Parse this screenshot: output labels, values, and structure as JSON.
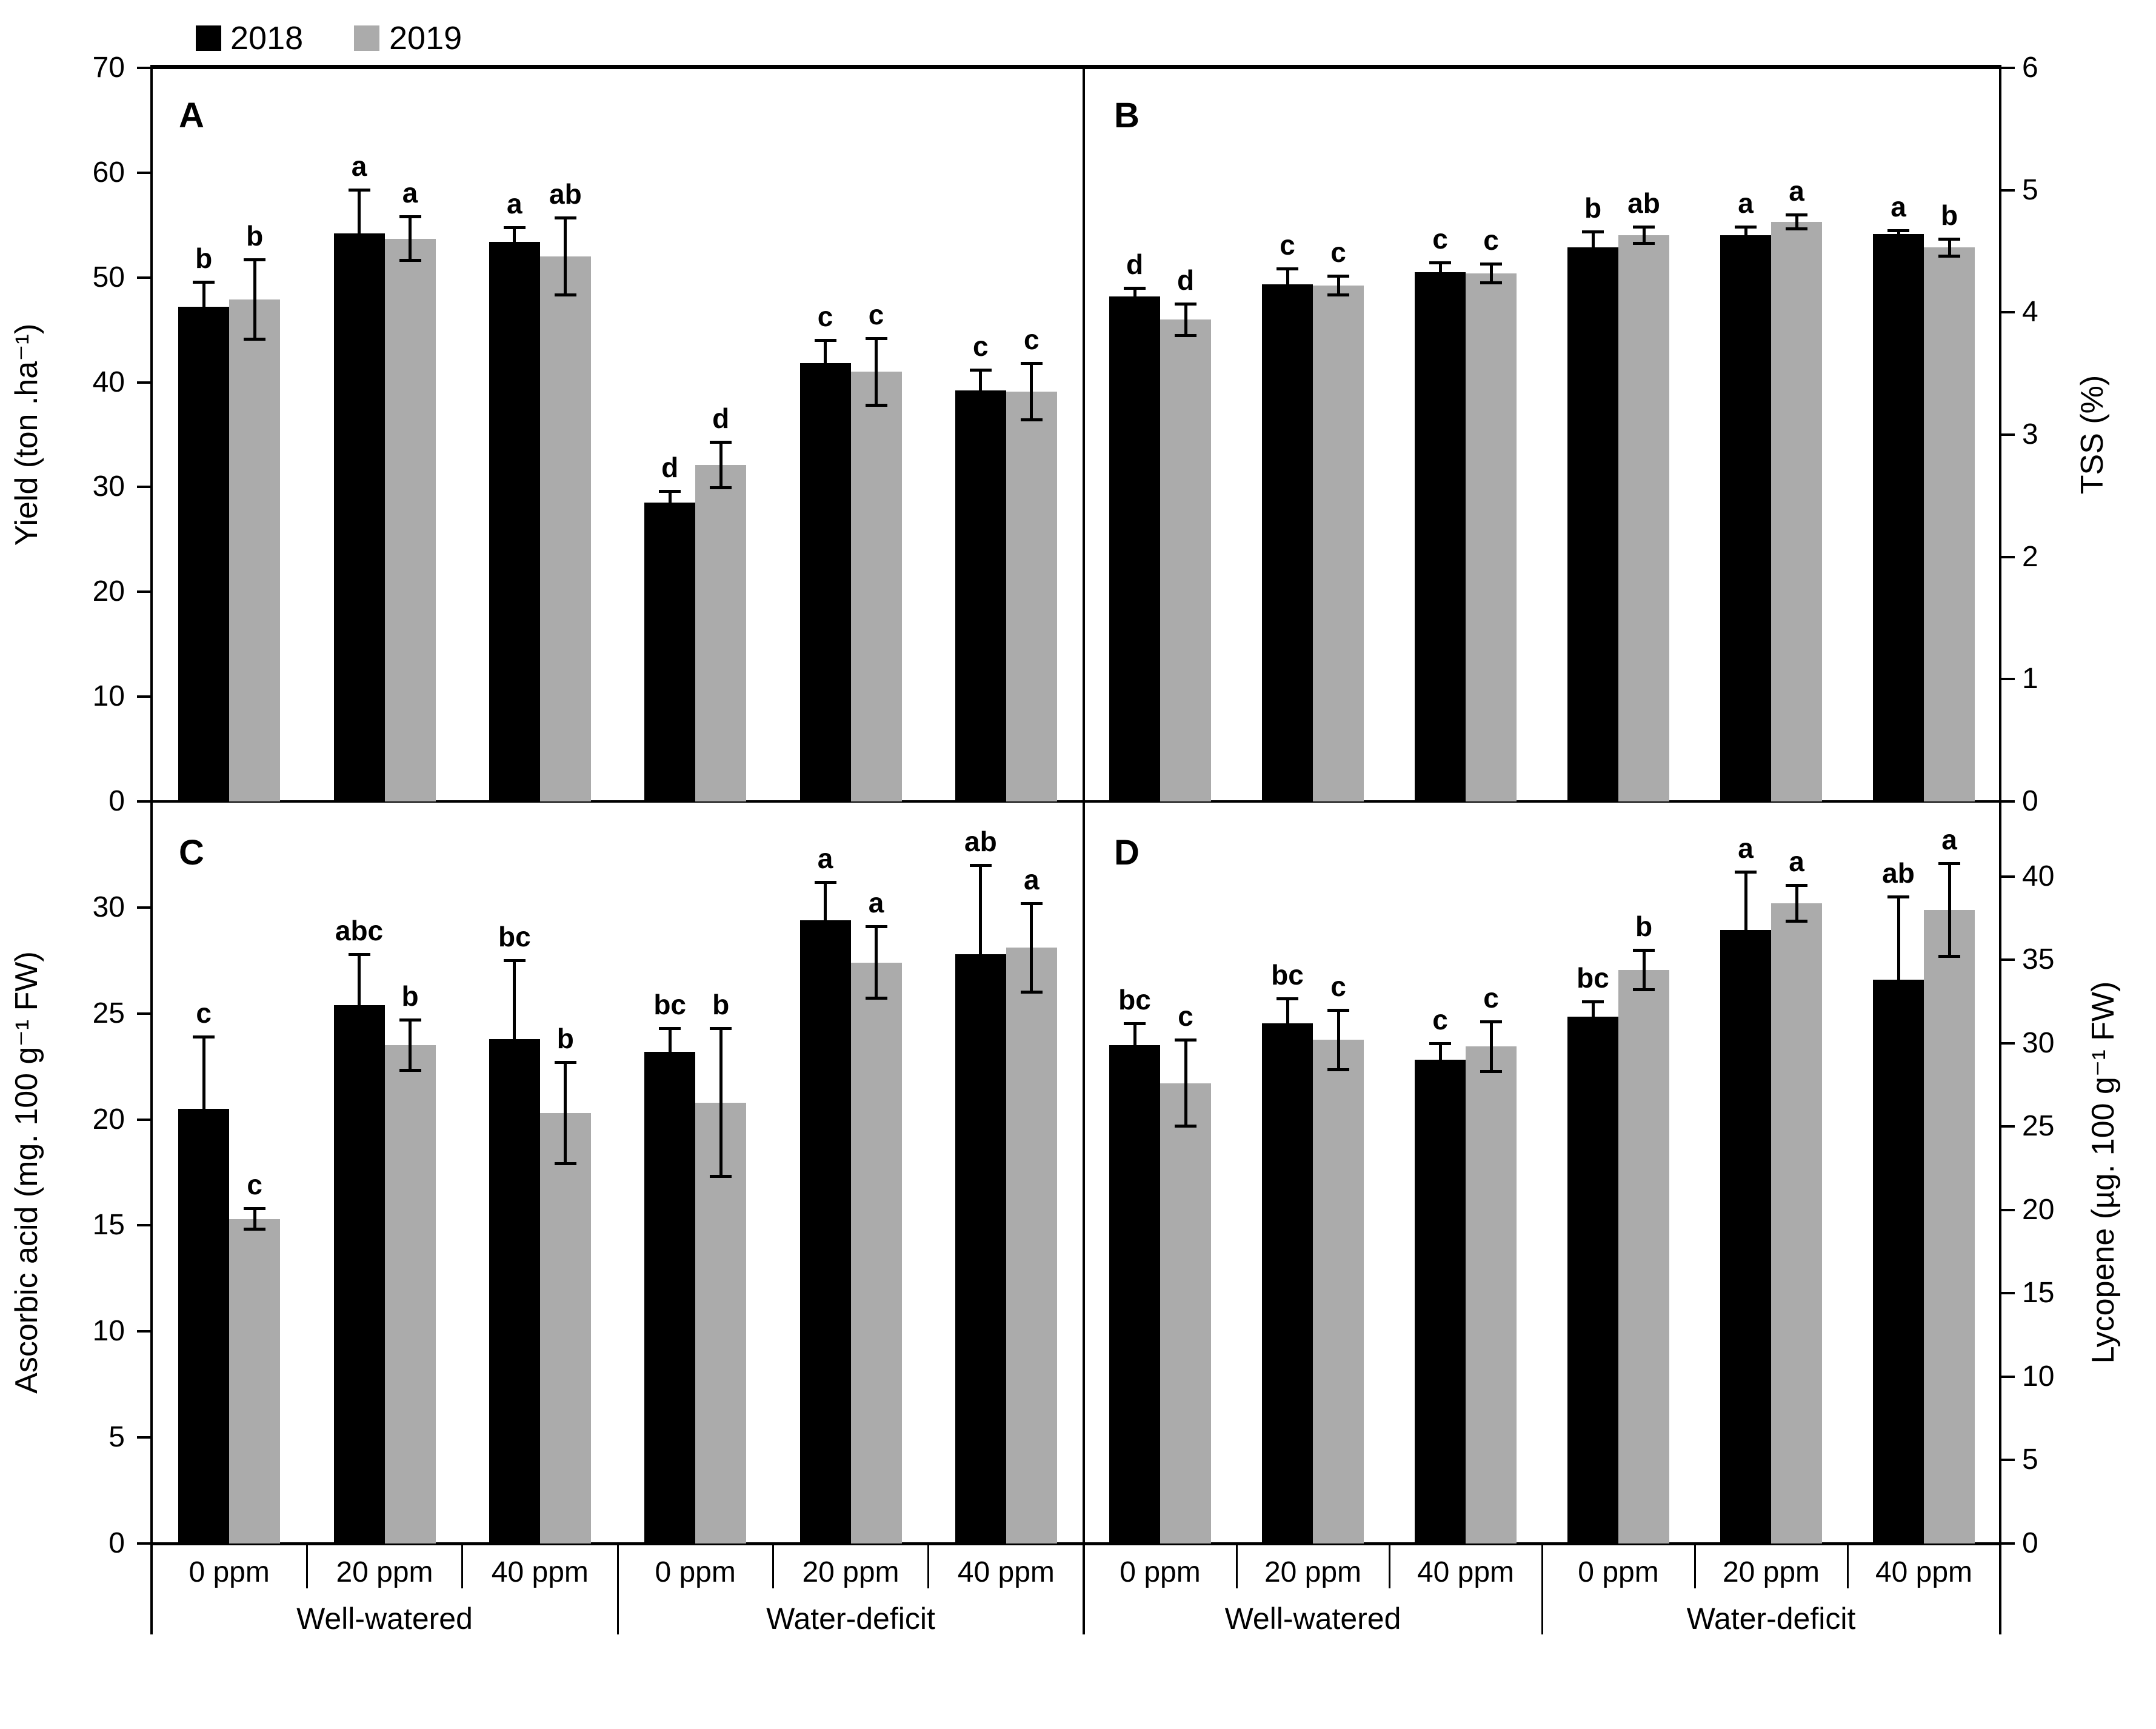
{
  "legend": {
    "items": [
      {
        "label": "2018",
        "color": "#000000"
      },
      {
        "label": "2019",
        "color": "#ababab"
      }
    ]
  },
  "x_axis": {
    "categories": [
      "0 ppm",
      "20 ppm",
      "40 ppm",
      "0 ppm",
      "20 ppm",
      "40 ppm"
    ],
    "groups": [
      "Well-watered",
      "Water-deficit"
    ]
  },
  "chart_data": [
    {
      "id": "A",
      "type": "bar",
      "letter": "A",
      "ylabel": "Yield (ton .ha⁻¹)",
      "axis_side": "left",
      "ylim": [
        0,
        70
      ],
      "draw_max": 70,
      "ticks": [
        0,
        10,
        20,
        30,
        40,
        50,
        60,
        70
      ],
      "series": [
        {
          "name": "2018",
          "color": "#000000",
          "values": [
            47.2,
            54.2,
            53.4,
            28.5,
            41.8,
            39.2
          ],
          "errors": [
            2.4,
            4.2,
            1.4,
            1.1,
            2.2,
            2.0
          ],
          "sig_letters": [
            "b",
            "a",
            "a",
            "d",
            "c",
            "c"
          ]
        },
        {
          "name": "2019",
          "color": "#ababab",
          "values": [
            47.9,
            53.7,
            52.0,
            32.1,
            41.0,
            39.1
          ],
          "errors": [
            3.8,
            2.1,
            3.7,
            2.2,
            3.2,
            2.7
          ],
          "sig_letters": [
            "b",
            "a",
            "ab",
            "d",
            "c",
            "c"
          ]
        }
      ]
    },
    {
      "id": "B",
      "type": "bar",
      "letter": "B",
      "ylabel": "TSS (%)",
      "axis_side": "right",
      "ylim": [
        0,
        6
      ],
      "draw_max": 6,
      "ticks": [
        0,
        1,
        2,
        3,
        4,
        5,
        6
      ],
      "series": [
        {
          "name": "2018",
          "color": "#000000",
          "values": [
            4.13,
            4.23,
            4.33,
            4.53,
            4.63,
            4.64
          ],
          "errors": [
            0.07,
            0.13,
            0.08,
            0.13,
            0.07,
            0.03
          ],
          "sig_letters": [
            "d",
            "c",
            "c",
            "b",
            "a",
            "a"
          ]
        },
        {
          "name": "2019",
          "color": "#ababab",
          "values": [
            3.94,
            4.22,
            4.32,
            4.63,
            4.74,
            4.53
          ],
          "errors": [
            0.13,
            0.08,
            0.08,
            0.07,
            0.06,
            0.07
          ],
          "sig_letters": [
            "d",
            "c",
            "c",
            "ab",
            "a",
            "b"
          ]
        }
      ]
    },
    {
      "id": "C",
      "type": "bar",
      "letter": "C",
      "ylabel": "Ascorbic acid (mg. 100 g⁻¹ FW)",
      "axis_side": "left",
      "ylim": [
        0,
        30
      ],
      "draw_max": 35,
      "ticks": [
        0,
        5,
        10,
        15,
        20,
        25,
        30
      ],
      "series": [
        {
          "name": "2018",
          "color": "#000000",
          "values": [
            20.5,
            25.4,
            23.8,
            23.2,
            29.4,
            27.8
          ],
          "errors": [
            3.4,
            2.4,
            3.7,
            1.1,
            1.8,
            4.2
          ],
          "sig_letters": [
            "c",
            "abc",
            "bc",
            "bc",
            "a",
            "ab"
          ]
        },
        {
          "name": "2019",
          "color": "#ababab",
          "values": [
            15.3,
            23.5,
            20.3,
            20.8,
            27.4,
            28.1
          ],
          "errors": [
            0.5,
            1.2,
            2.4,
            3.5,
            1.7,
            2.1
          ],
          "sig_letters": [
            "c",
            "b",
            "b",
            "b",
            "a",
            "a"
          ]
        }
      ]
    },
    {
      "id": "D",
      "type": "bar",
      "letter": "D",
      "ylabel": "Lycopene (µg. 100 g⁻¹ FW)",
      "axis_side": "right",
      "ylim": [
        0,
        40
      ],
      "draw_max": 44.5,
      "ticks": [
        0,
        5,
        10,
        15,
        20,
        25,
        30,
        35,
        40
      ],
      "series": [
        {
          "name": "2018",
          "color": "#000000",
          "values": [
            29.9,
            31.2,
            29.0,
            31.6,
            36.8,
            33.8
          ],
          "errors": [
            1.3,
            1.5,
            1.0,
            0.9,
            3.5,
            5.0
          ],
          "sig_letters": [
            "bc",
            "bc",
            "c",
            "bc",
            "a",
            "ab"
          ]
        },
        {
          "name": "2019",
          "color": "#ababab",
          "values": [
            27.6,
            30.2,
            29.8,
            34.4,
            38.4,
            38.0
          ],
          "errors": [
            2.6,
            1.8,
            1.5,
            1.2,
            1.1,
            2.8
          ],
          "sig_letters": [
            "c",
            "c",
            "c",
            "b",
            "a",
            "a"
          ]
        }
      ]
    }
  ]
}
